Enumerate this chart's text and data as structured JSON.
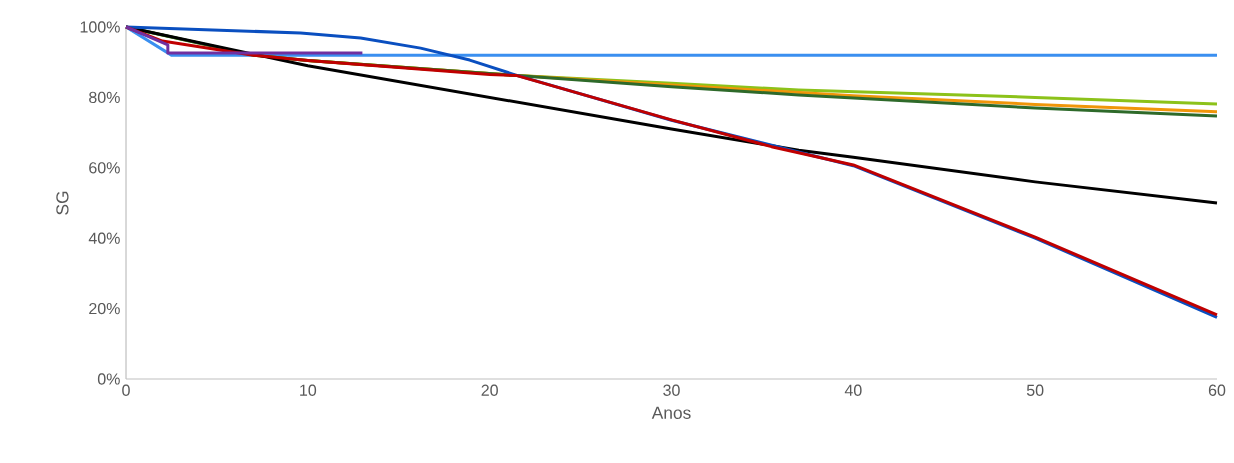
{
  "chart_data": {
    "type": "line",
    "xlabel": "Anos",
    "ylabel": "SG",
    "xlim": [
      0,
      60
    ],
    "ylim": [
      0,
      100
    ],
    "xticks": [
      0,
      10,
      20,
      30,
      40,
      50,
      60
    ],
    "yticks": [
      {
        "value": 0,
        "label": "0%"
      },
      {
        "value": 20,
        "label": "20%"
      },
      {
        "value": 40,
        "label": "40%"
      },
      {
        "value": 60,
        "label": "60%"
      },
      {
        "value": 80,
        "label": "80%"
      },
      {
        "value": 100,
        "label": "100%"
      }
    ],
    "series": [
      {
        "color": "#3a8ff0",
        "x": [
          0,
          2.5,
          60
        ],
        "values": [
          100,
          92,
          92
        ]
      },
      {
        "color": "#8cc21a",
        "x": [
          0,
          7,
          10,
          21.5,
          30,
          37,
          50,
          60
        ],
        "values": [
          100,
          92,
          90.5,
          86.2,
          84,
          82.1,
          80,
          78.1
        ]
      },
      {
        "color": "#f0960a",
        "x": [
          10,
          21.5,
          30,
          40,
          50,
          60
        ],
        "values": [
          90.5,
          86.2,
          83.5,
          80.5,
          78,
          75.9
        ]
      },
      {
        "color": "#2e6a2a",
        "x": [
          0,
          7,
          10,
          21.5,
          30,
          37,
          50,
          60
        ],
        "values": [
          100,
          92,
          90.5,
          86.2,
          83,
          80.7,
          77,
          74.7
        ]
      },
      {
        "color": "#000000",
        "x": [
          0,
          10,
          20,
          30,
          37,
          40,
          50,
          60
        ],
        "values": [
          100,
          89,
          80,
          71,
          65,
          63,
          56,
          50
        ]
      },
      {
        "color": "#0a4fc0",
        "x": [
          0,
          9.6,
          12.9,
          16.2,
          18.9,
          21.4,
          30,
          40,
          50,
          60
        ],
        "values": [
          100,
          98.3,
          96.9,
          94,
          90.6,
          86.4,
          73.5,
          60.6,
          40,
          17.5
        ]
      },
      {
        "color": "#c00000",
        "x": [
          0,
          2,
          7,
          10,
          20,
          21.5,
          30,
          35.5,
          40,
          50,
          60
        ],
        "values": [
          100,
          96,
          92,
          90.5,
          86.5,
          86.2,
          73.6,
          66,
          60.8,
          40.3,
          18.2
        ]
      },
      {
        "color": "#7030a0",
        "x": [
          0,
          2.3,
          2.3,
          13
        ],
        "values": [
          100,
          94.9,
          92.6,
          92.6
        ]
      }
    ]
  }
}
